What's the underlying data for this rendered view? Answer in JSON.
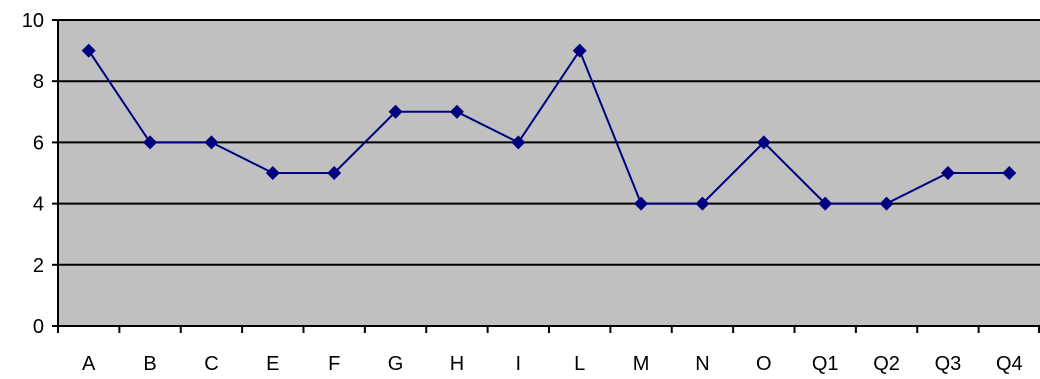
{
  "chart_data": {
    "type": "line",
    "title": "",
    "xlabel": "",
    "ylabel": "",
    "categories": [
      "A",
      "B",
      "C",
      "E",
      "F",
      "G",
      "H",
      "I",
      "L",
      "M",
      "N",
      "O",
      "Q1",
      "Q2",
      "Q3",
      "Q4"
    ],
    "series": [
      {
        "values": [
          9,
          6,
          6,
          5,
          5,
          7,
          7,
          6,
          9,
          4,
          4,
          6,
          4,
          4,
          5,
          5
        ],
        "color": "#000080",
        "marker": "diamond"
      }
    ],
    "ylim": [
      0,
      10
    ],
    "yticks": [
      "0",
      "2",
      "4",
      "6",
      "8",
      "10"
    ],
    "grid": true,
    "legend": "none",
    "plot_background": "#c0c0c0",
    "gridline_color": "#000000"
  }
}
